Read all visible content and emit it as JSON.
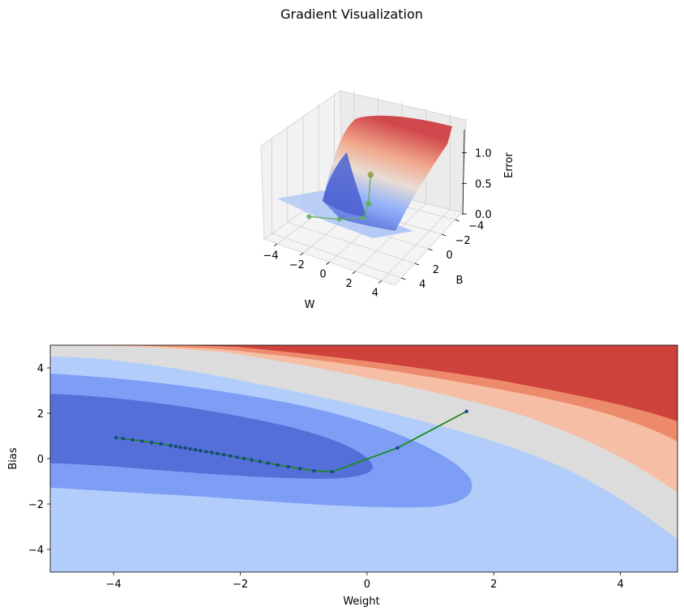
{
  "figure": {
    "title": "Gradient Visualization"
  },
  "chart_data": [
    {
      "type": "surface3d",
      "xlabel": "W",
      "ylabel": "B",
      "zlabel": "Error",
      "x_ticks": [
        "−4",
        "−2",
        "0",
        "2",
        "4"
      ],
      "y_ticks": [
        "−4",
        "−2",
        "0",
        "2",
        "4"
      ],
      "z_ticks": [
        "0.0",
        "0.5",
        "1.0"
      ],
      "xlim": [
        -5,
        5
      ],
      "ylim": [
        -5,
        5
      ],
      "zlim": [
        0,
        1.3
      ],
      "colormap": "coolwarm",
      "path_color": "#5fae5f",
      "path": [
        {
          "w": 1.57,
          "b": 2.08,
          "e": 1.02
        },
        {
          "w": 0.48,
          "b": 0.45,
          "e": 0.42
        },
        {
          "w": -0.55,
          "b": -0.6,
          "e": 0.08
        },
        {
          "w": -2.0,
          "b": 0.2,
          "e": 0.06
        },
        {
          "w": -3.96,
          "b": 0.92,
          "e": 0.05
        }
      ]
    },
    {
      "type": "contour",
      "xlabel": "Weight",
      "ylabel": "Bias",
      "x_ticks": [
        -4,
        -2,
        0,
        2,
        4
      ],
      "y_ticks": [
        -4,
        -2,
        0,
        2,
        4
      ],
      "xlim": [
        -5,
        4.9
      ],
      "ylim": [
        -5,
        5
      ],
      "grid": false,
      "colormap": "coolwarm",
      "level_colors": [
        "#5470d8",
        "#7e9ef6",
        "#b3cdfb",
        "#dddcdc",
        "#f6bea4",
        "#ee8a6c",
        "#cd423b"
      ],
      "path_line_color": "#1b8a1b",
      "path_marker_color": "#1f3f9f",
      "path": {
        "w": [
          1.57,
          0.48,
          -0.55,
          -0.84,
          -1.06,
          -1.24,
          -1.41,
          -1.56,
          -1.69,
          -1.82,
          -1.94,
          -2.05,
          -2.16,
          -2.26,
          -2.36,
          -2.45,
          -2.54,
          -2.63,
          -2.71,
          -2.79,
          -2.87,
          -2.95,
          -3.02,
          -3.1,
          -3.25,
          -3.4,
          -3.55,
          -3.7,
          -3.85,
          -3.96
        ],
        "b": [
          2.08,
          0.47,
          -0.58,
          -0.54,
          -0.44,
          -0.36,
          -0.28,
          -0.2,
          -0.13,
          -0.06,
          0.0,
          0.06,
          0.12,
          0.17,
          0.22,
          0.27,
          0.31,
          0.35,
          0.39,
          0.43,
          0.47,
          0.5,
          0.54,
          0.58,
          0.65,
          0.71,
          0.77,
          0.83,
          0.88,
          0.92
        ]
      }
    }
  ]
}
